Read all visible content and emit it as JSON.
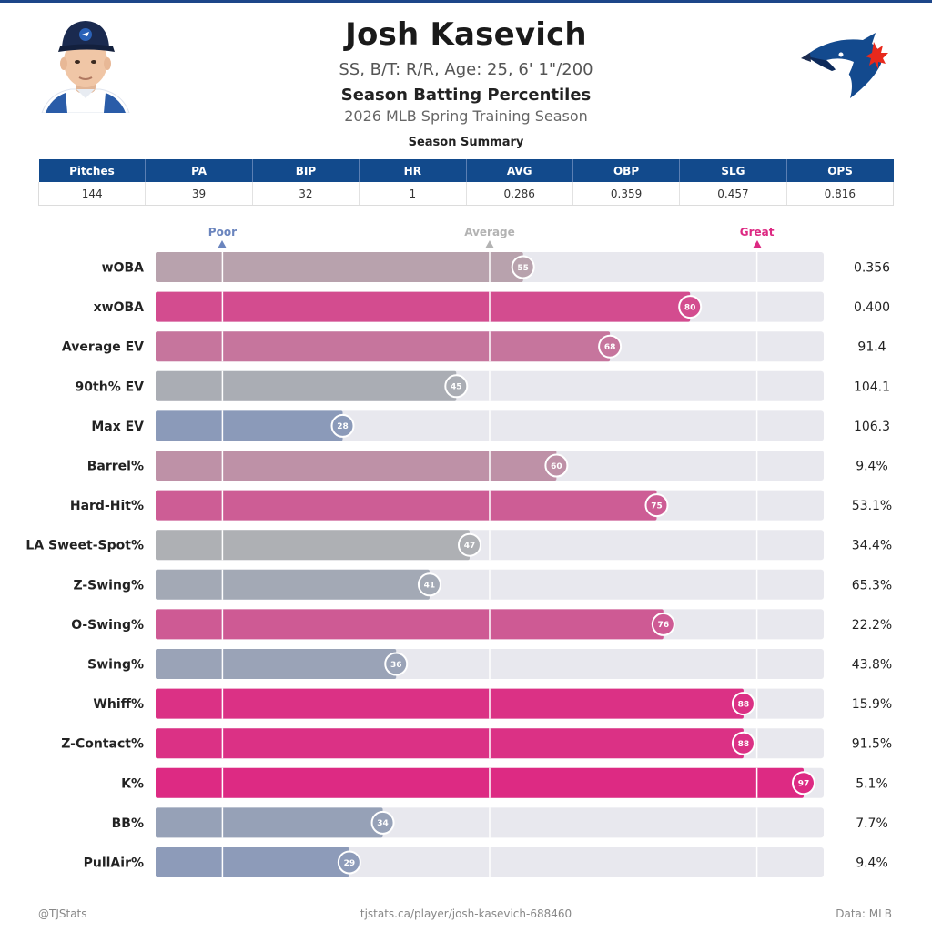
{
  "header": {
    "name": "Josh Kasevich",
    "bio": "SS, B/T: R/R, Age: 25, 6' 1\"/200",
    "subtitle": "Season Batting Percentiles",
    "season": "2026 MLB Spring Training Season",
    "summary_title": "Season Summary"
  },
  "summary": {
    "headers": [
      "Pitches",
      "PA",
      "BIP",
      "HR",
      "AVG",
      "OBP",
      "SLG",
      "OPS"
    ],
    "values": [
      "144",
      "39",
      "32",
      "1",
      "0.286",
      "0.359",
      "0.457",
      "0.816"
    ]
  },
  "colors": {
    "header_blue": "#124a8c",
    "poor": "#6b85be",
    "average": "#b3b3b3",
    "great": "#dd2a83",
    "track": "#e8e8ee"
  },
  "chart_data": {
    "type": "bar",
    "orientation": "horizontal",
    "xlim": [
      0,
      100
    ],
    "reference_marks": [
      {
        "label": "Poor",
        "value": 10
      },
      {
        "label": "Average",
        "value": 50
      },
      {
        "label": "Great",
        "value": 90
      }
    ],
    "categories": [
      "wOBA",
      "xwOBA",
      "Average EV",
      "90th% EV",
      "Max EV",
      "Barrel%",
      "Hard-Hit%",
      "LA Sweet-Spot%",
      "Z-Swing%",
      "O-Swing%",
      "Swing%",
      "Whiff%",
      "Z-Contact%",
      "K%",
      "BB%",
      "PullAir%"
    ],
    "percentiles": [
      55,
      80,
      68,
      45,
      28,
      60,
      75,
      47,
      41,
      76,
      36,
      88,
      88,
      97,
      34,
      29
    ],
    "stat_values": [
      "0.356",
      "0.400",
      "91.4",
      "104.1",
      "106.3",
      "9.4%",
      "53.1%",
      "34.4%",
      "65.3%",
      "22.2%",
      "43.8%",
      "15.9%",
      "91.5%",
      "5.1%",
      "7.7%",
      "9.4%"
    ]
  },
  "footer": {
    "left": "@TJStats",
    "center": "tjstats.ca/player/josh-kasevich-688460",
    "right": "Data: MLB"
  }
}
